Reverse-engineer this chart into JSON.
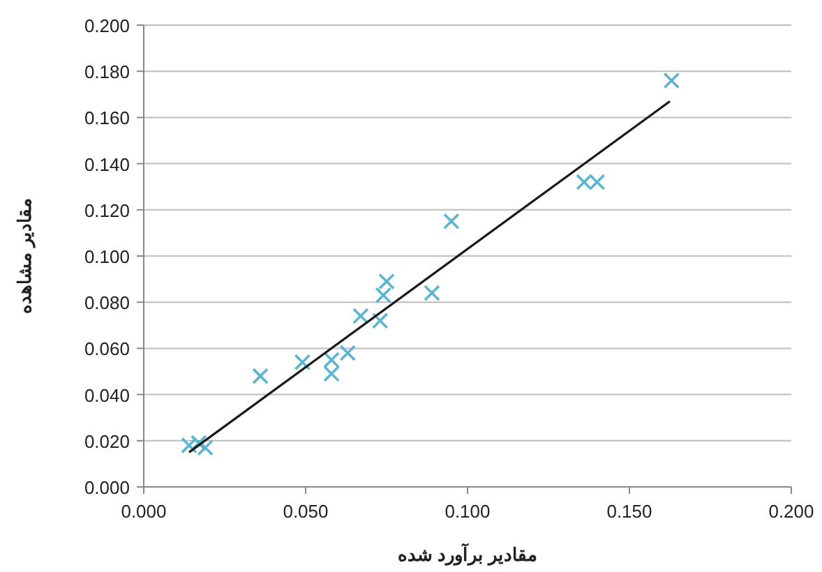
{
  "chart_data": {
    "type": "scatter",
    "xlabel": "مقادیر برآورد شده",
    "ylabel": "مقادیر مشاهده",
    "xlim": [
      0,
      0.2
    ],
    "ylim": [
      0,
      0.2
    ],
    "xticks": [
      {
        "value": 0,
        "label": "0.000"
      },
      {
        "value": 0.05,
        "label": "0.050"
      },
      {
        "value": 0.1,
        "label": "0.100"
      },
      {
        "value": 0.15,
        "label": "0.150"
      },
      {
        "value": 0.2,
        "label": "0.200"
      }
    ],
    "yticks": [
      {
        "value": 0,
        "label": "0.000"
      },
      {
        "value": 0.02,
        "label": "0.020"
      },
      {
        "value": 0.04,
        "label": "0.040"
      },
      {
        "value": 0.06,
        "label": "0.060"
      },
      {
        "value": 0.08,
        "label": "0.080"
      },
      {
        "value": 0.1,
        "label": "0.100"
      },
      {
        "value": 0.12,
        "label": "0.120"
      },
      {
        "value": 0.14,
        "label": "0.140"
      },
      {
        "value": 0.16,
        "label": "0.160"
      },
      {
        "value": 0.18,
        "label": "0.180"
      },
      {
        "value": 0.2,
        "label": "0.200"
      }
    ],
    "grid": "y",
    "series": [
      {
        "marker": "cross",
        "color": "#5bb5cf",
        "x": [
          0.014,
          0.017,
          0.019,
          0.036,
          0.049,
          0.058,
          0.058,
          0.063,
          0.067,
          0.073,
          0.074,
          0.075,
          0.089,
          0.095,
          0.136,
          0.14,
          0.163
        ],
        "values": [
          0.018,
          0.019,
          0.017,
          0.048,
          0.054,
          0.055,
          0.049,
          0.058,
          0.074,
          0.072,
          0.083,
          0.089,
          0.084,
          0.115,
          0.132,
          0.132,
          0.176
        ]
      },
      {
        "type": "line",
        "marker": "none",
        "color": "#1a1a1a",
        "x": [
          0.014,
          0.1625
        ],
        "values": [
          0.015,
          0.167
        ]
      }
    ]
  }
}
